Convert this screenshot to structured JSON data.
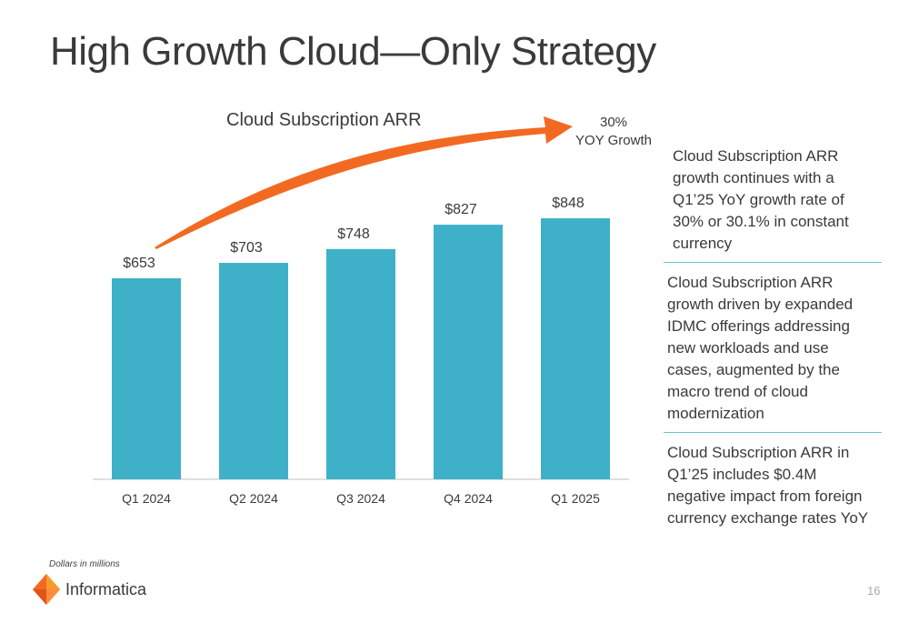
{
  "slide": {
    "title": "High Growth Cloud—Only Strategy",
    "footnote": "Dollars in millions",
    "logo_text": "Informatica",
    "page_number": "16"
  },
  "growth_callout": {
    "line1": "30%",
    "line2": "YOY Growth"
  },
  "notes": [
    "Cloud Subscription ARR growth continues with a Q1’25 YoY growth rate of 30% or 30.1% in constant currency",
    "Cloud Subscription ARR growth driven by expanded IDMC offerings addressing new workloads and use cases, augmented by the macro trend of cloud modernization",
    "Cloud Subscription ARR in Q1’25 includes $0.4M negative impact from foreign currency exchange rates YoY"
  ],
  "chart_data": {
    "type": "bar",
    "title": "Cloud Subscription ARR",
    "categories": [
      "Q1 2024",
      "Q2 2024",
      "Q3 2024",
      "Q4 2024",
      "Q1 2025"
    ],
    "values": [
      653,
      703,
      748,
      827,
      848
    ],
    "data_labels": [
      "$653",
      "$703",
      "$748",
      "$827",
      "$848"
    ],
    "ylim": [
      0,
      1000
    ],
    "grid": false,
    "bar_color": "#3eb1c8",
    "arrow_color": "#f26a21"
  }
}
